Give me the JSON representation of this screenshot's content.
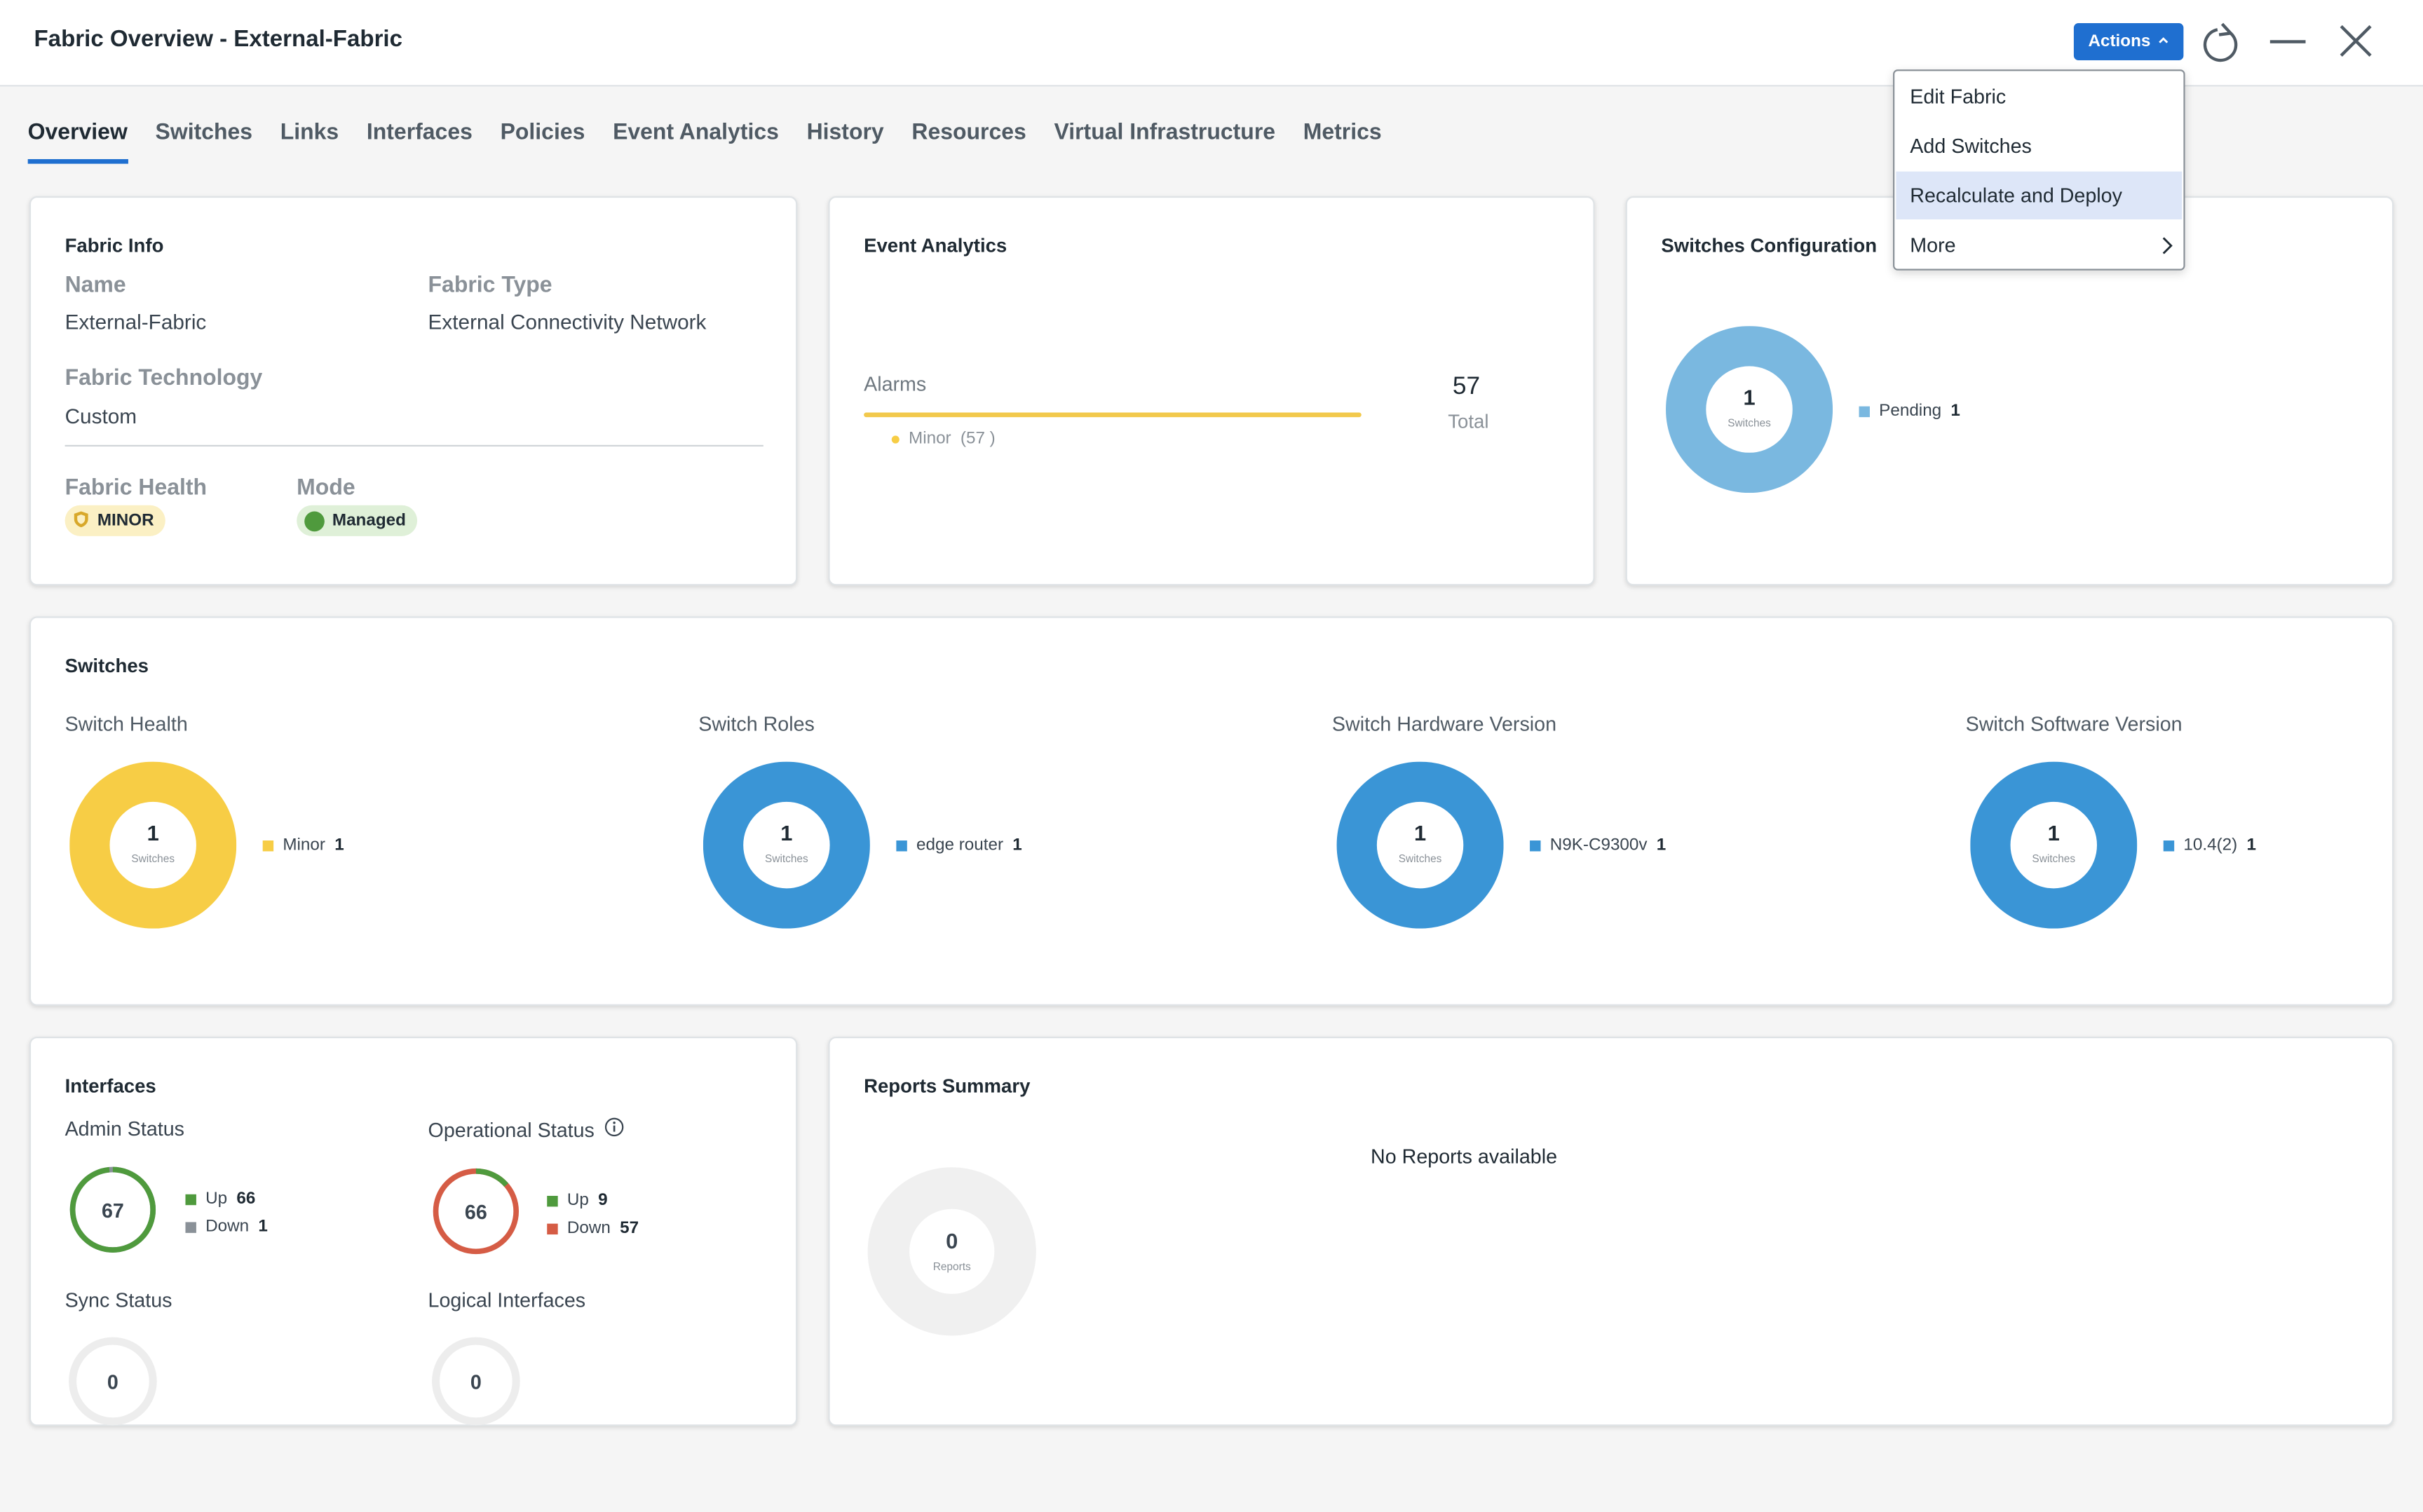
{
  "window": {
    "title": "Fabric Overview - External-Fabric",
    "actions_label": "Actions"
  },
  "tabs": [
    "Overview",
    "Switches",
    "Links",
    "Interfaces",
    "Policies",
    "Event Analytics",
    "History",
    "Resources",
    "Virtual Infrastructure",
    "Metrics"
  ],
  "actions_menu": {
    "items": [
      "Edit Fabric",
      "Add Switches",
      "Recalculate and Deploy",
      "More"
    ],
    "highlighted": "Recalculate and Deploy"
  },
  "fabric_info": {
    "title": "Fabric Info",
    "name_label": "Name",
    "name": "External-Fabric",
    "type_label": "Fabric Type",
    "type": "External Connectivity Network",
    "tech_label": "Fabric Technology",
    "tech": "Custom",
    "health_label": "Fabric Health",
    "health": "MINOR",
    "mode_label": "Mode",
    "mode": "Managed"
  },
  "event_analytics": {
    "title": "Event Analytics",
    "alarms_label": "Alarms",
    "minor_label": "Minor",
    "minor_count": "(57 )",
    "total_value": "57",
    "total_label": "Total"
  },
  "switches_config": {
    "title": "Switches Configuration",
    "center_value": "1",
    "center_label": "Switches",
    "legend": {
      "label": "Pending",
      "value": "1"
    }
  },
  "switches": {
    "title": "Switches",
    "charts": [
      {
        "title": "Switch Health",
        "center_value": "1",
        "center_label": "Switches",
        "legend_label": "Minor",
        "legend_value": "1",
        "color": "#f7cd45"
      },
      {
        "title": "Switch Roles",
        "center_value": "1",
        "center_label": "Switches",
        "legend_label": "edge router",
        "legend_value": "1",
        "color": "#3a95d6"
      },
      {
        "title": "Switch Hardware Version",
        "center_value": "1",
        "center_label": "Switches",
        "legend_label": "N9K-C9300v",
        "legend_value": "1",
        "color": "#3a95d6"
      },
      {
        "title": "Switch Software Version",
        "center_value": "1",
        "center_label": "Switches",
        "legend_label": "10.4(2)",
        "legend_value": "1",
        "color": "#3a95d6"
      }
    ]
  },
  "interfaces": {
    "title": "Interfaces",
    "admin": {
      "title": "Admin Status",
      "total": "67",
      "up_label": "Up",
      "up": "66",
      "down_label": "Down",
      "down": "1"
    },
    "oper": {
      "title": "Operational Status",
      "total": "66",
      "up_label": "Up",
      "up": "9",
      "down_label": "Down",
      "down": "57"
    },
    "sync": {
      "title": "Sync Status",
      "total": "0"
    },
    "logical": {
      "title": "Logical Interfaces",
      "total": "0"
    }
  },
  "reports": {
    "title": "Reports Summary",
    "empty_text": "No Reports available",
    "center_value": "0",
    "center_label": "Reports"
  },
  "chart_data": [
    {
      "type": "pie",
      "title": "Switches Configuration",
      "categories": [
        "Pending"
      ],
      "values": [
        1
      ]
    },
    {
      "type": "pie",
      "title": "Switch Health",
      "categories": [
        "Minor"
      ],
      "values": [
        1
      ]
    },
    {
      "type": "pie",
      "title": "Switch Roles",
      "categories": [
        "edge router"
      ],
      "values": [
        1
      ]
    },
    {
      "type": "pie",
      "title": "Switch Hardware Version",
      "categories": [
        "N9K-C9300v"
      ],
      "values": [
        1
      ]
    },
    {
      "type": "pie",
      "title": "Switch Software Version",
      "categories": [
        "10.4(2)"
      ],
      "values": [
        1
      ]
    },
    {
      "type": "pie",
      "title": "Admin Status",
      "categories": [
        "Up",
        "Down"
      ],
      "values": [
        66,
        1
      ]
    },
    {
      "type": "pie",
      "title": "Operational Status",
      "categories": [
        "Up",
        "Down"
      ],
      "values": [
        9,
        57
      ]
    },
    {
      "type": "bar",
      "title": "Alarms",
      "categories": [
        "Minor"
      ],
      "values": [
        57
      ]
    }
  ],
  "colors": {
    "accent": "#1f6fd0",
    "minor": "#f7cd45",
    "blue": "#3a95d6",
    "light_blue": "#7ab8e0",
    "up": "#4f9a3d",
    "down_oper": "#d55c45",
    "down_admin": "#8a9198",
    "managed": "#dff0d8",
    "minor_badge": "#fbf0c4"
  }
}
